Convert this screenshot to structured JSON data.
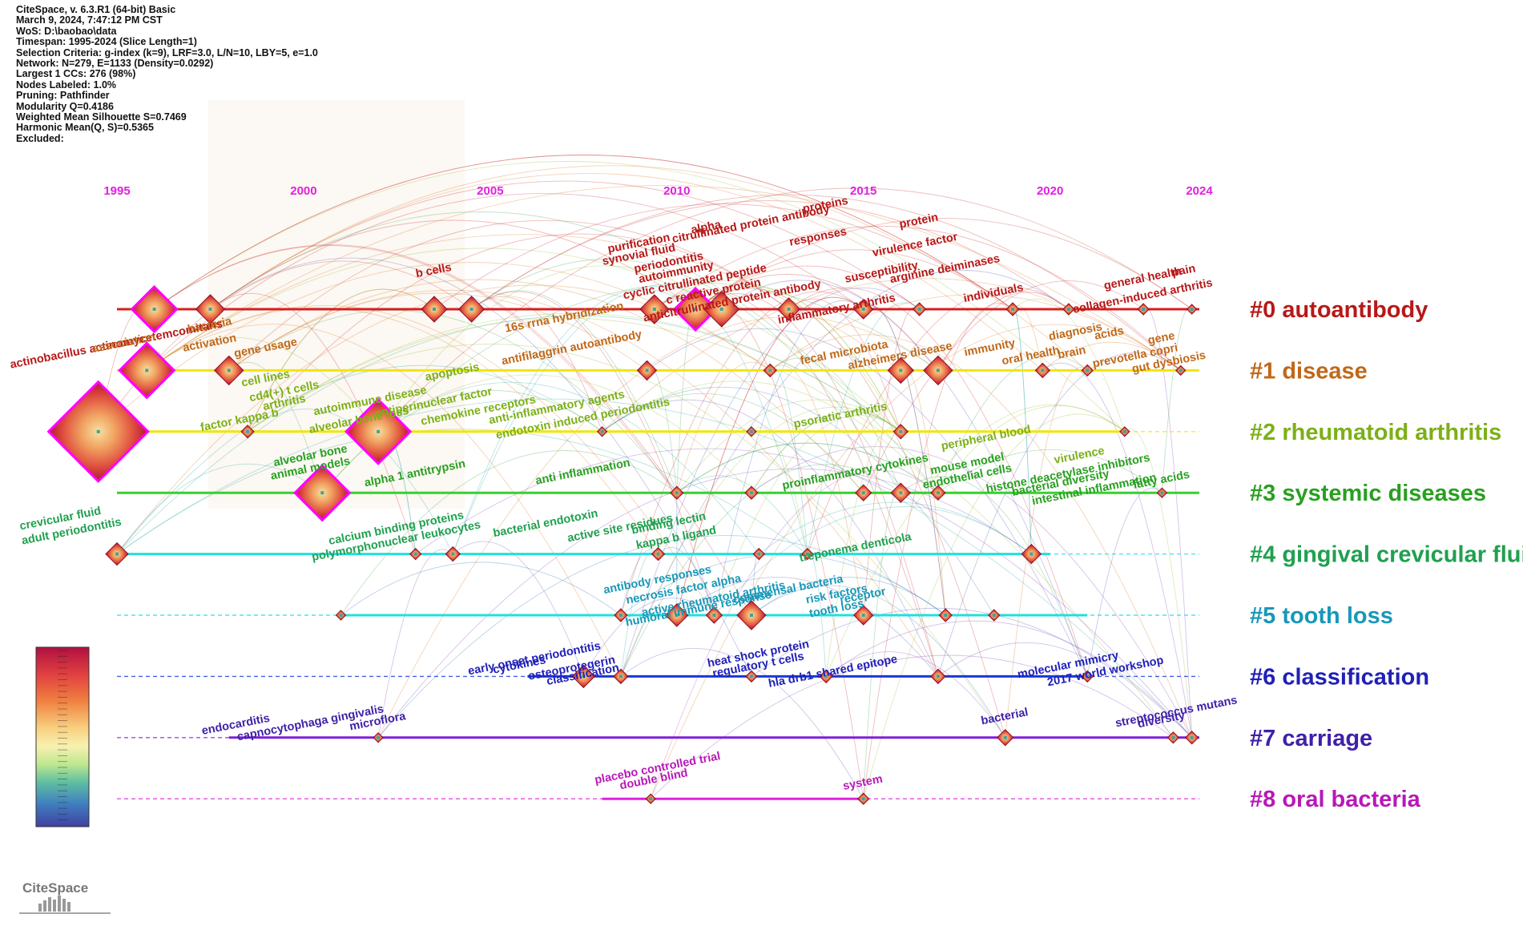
{
  "header_info": [
    "CiteSpace, v. 6.3.R1 (64-bit) Basic",
    "March 9, 2024, 7:47:12 PM CST",
    "WoS: D:\\baobao\\data",
    "Timespan: 1995-2024 (Slice Length=1)",
    "Selection Criteria: g-index (k=9), LRF=3.0, L/N=10, LBY=5, e=1.0",
    "Network: N=279, E=1133 (Density=0.0292)",
    "Largest 1 CCs: 276 (98%)",
    "Nodes Labeled: 1.0%",
    "Pruning: Pathfinder",
    "Modularity Q=0.4186",
    "Weighted Mean Silhouette S=0.7469",
    "Harmonic Mean(Q, S)=0.5365",
    "Excluded:"
  ],
  "year_ticks": [
    "1995",
    "2000",
    "2005",
    "2010",
    "2015",
    "2020",
    "2024"
  ],
  "logo_text": "CiteSpace",
  "colors": {
    "tick": "#e020e0",
    "node_outline": "#ff00ff"
  },
  "clusters": [
    {
      "label": "#0 autoantibody",
      "color": "#b81818",
      "line": "#d42020",
      "start": 1995,
      "end": 2024
    },
    {
      "label": "#1 disease",
      "color": "#c06818",
      "line": "#f2e600",
      "start": 1995,
      "end": 2024
    },
    {
      "label": "#2 rheumatoid arthritis",
      "color": "#7cb018",
      "line": "#f2e600",
      "start": 1995,
      "end": 2022
    },
    {
      "label": "#3 systemic diseases",
      "color": "#28a020",
      "line": "#38d030",
      "start": 1995,
      "end": 2024
    },
    {
      "label": "#4 gingival crevicular fluid",
      "color": "#20a050",
      "line": "#20e0e0",
      "start": 1995,
      "end": 2020
    },
    {
      "label": "#5 tooth loss",
      "color": "#1898b8",
      "line": "#20e0e0",
      "start": 2001,
      "end": 2021
    },
    {
      "label": "#6 classification",
      "color": "#2020b8",
      "line": "#1838d8",
      "start": 2006,
      "end": 2021
    },
    {
      "label": "#7 carriage",
      "color": "#4020a8",
      "line": "#8020d8",
      "start": 1998,
      "end": 2024
    },
    {
      "label": "#8 oral bacteria",
      "color": "#b818b8",
      "line": "#e020e0",
      "start": 2008,
      "end": 2015
    }
  ],
  "keywords": [
    {
      "text": "b cells",
      "cluster": 0,
      "year": 2003.5,
      "dy": -38
    },
    {
      "text": "purification",
      "cluster": 0,
      "year": 2009,
      "dy": -72
    },
    {
      "text": "alpha",
      "cluster": 0,
      "year": 2010.8,
      "dy": -92
    },
    {
      "text": "proteins",
      "cluster": 0,
      "year": 2014,
      "dy": -120
    },
    {
      "text": "citrullinated protein antibody",
      "cluster": 0,
      "year": 2012,
      "dy": -96
    },
    {
      "text": "synovial fluid",
      "cluster": 0,
      "year": 2009,
      "dy": -58
    },
    {
      "text": "periodontitis",
      "cluster": 0,
      "year": 2009.8,
      "dy": -48
    },
    {
      "text": "responses",
      "cluster": 0,
      "year": 2013.8,
      "dy": -80
    },
    {
      "text": "protein",
      "cluster": 0,
      "year": 2016.5,
      "dy": -100
    },
    {
      "text": "autoimmunity",
      "cluster": 0,
      "year": 2010,
      "dy": -36
    },
    {
      "text": "cyclic citrullinated peptide",
      "cluster": 0,
      "year": 2010.5,
      "dy": -24
    },
    {
      "text": "virulence factor",
      "cluster": 0,
      "year": 2016.4,
      "dy": -70
    },
    {
      "text": "c reactive protein",
      "cluster": 0,
      "year": 2011,
      "dy": -12
    },
    {
      "text": "anticitrullinated protein antibody",
      "cluster": 0,
      "year": 2011.5,
      "dy": 0
    },
    {
      "text": "susceptibility",
      "cluster": 0,
      "year": 2015.5,
      "dy": -36
    },
    {
      "text": "arginine deiminases",
      "cluster": 0,
      "year": 2017.2,
      "dy": -40
    },
    {
      "text": "inflammatory arthritis",
      "cluster": 0,
      "year": 2014.3,
      "dy": 10
    },
    {
      "text": "individuals",
      "cluster": 0,
      "year": 2018.5,
      "dy": -10
    },
    {
      "text": "general health",
      "cluster": 0,
      "year": 2022.5,
      "dy": -28
    },
    {
      "text": "pain",
      "cluster": 0,
      "year": 2023.6,
      "dy": -38
    },
    {
      "text": "collagen-induced arthritis",
      "cluster": 0,
      "year": 2022.5,
      "dy": -6
    },
    {
      "text": "actinobacillus actinomycetemcomitans",
      "cluster": 0,
      "year": 1995,
      "dy": 54
    },
    {
      "text": "bacteria",
      "cluster": 1,
      "year": 1997.5,
      "dy": -46
    },
    {
      "text": "association",
      "cluster": 1,
      "year": 1995.2,
      "dy": -24
    },
    {
      "text": "activation",
      "cluster": 1,
      "year": 1997.5,
      "dy": -24
    },
    {
      "text": "gene usage",
      "cluster": 1,
      "year": 1999,
      "dy": -18
    },
    {
      "text": "16s rrna hybridization",
      "cluster": 1,
      "year": 2007,
      "dy": -56
    },
    {
      "text": "antifilaggrin autoantibody",
      "cluster": 1,
      "year": 2007.2,
      "dy": -18
    },
    {
      "text": "fecal microbiota",
      "cluster": 1,
      "year": 2014.5,
      "dy": -12
    },
    {
      "text": "alzheimers disease",
      "cluster": 1,
      "year": 2016,
      "dy": -8
    },
    {
      "text": "immunity",
      "cluster": 1,
      "year": 2018.4,
      "dy": -18
    },
    {
      "text": "oral health",
      "cluster": 1,
      "year": 2019.5,
      "dy": -8
    },
    {
      "text": "diagnosis",
      "cluster": 1,
      "year": 2020.7,
      "dy": -38
    },
    {
      "text": "acids",
      "cluster": 1,
      "year": 2021.6,
      "dy": -36
    },
    {
      "text": "gene",
      "cluster": 1,
      "year": 2023,
      "dy": -30
    },
    {
      "text": "brain",
      "cluster": 1,
      "year": 2020.6,
      "dy": -12
    },
    {
      "text": "prevotella copri",
      "cluster": 1,
      "year": 2022.3,
      "dy": -8
    },
    {
      "text": "gut dysbiosis",
      "cluster": 1,
      "year": 2023.2,
      "dy": 0
    },
    {
      "text": "cell lines",
      "cluster": 2,
      "year": 1999,
      "dy": -56
    },
    {
      "text": "cd4(+) t cells",
      "cluster": 2,
      "year": 1999.5,
      "dy": -40
    },
    {
      "text": "apoptosis",
      "cluster": 2,
      "year": 2004,
      "dy": -64
    },
    {
      "text": "arthritis",
      "cluster": 2,
      "year": 1999.5,
      "dy": -26
    },
    {
      "text": "autoimmune disease",
      "cluster": 2,
      "year": 2001.8,
      "dy": -28
    },
    {
      "text": "antiperinuclear factor",
      "cluster": 2,
      "year": 2003.5,
      "dy": -26
    },
    {
      "text": "factor kappa b",
      "cluster": 2,
      "year": 1998.3,
      "dy": -4
    },
    {
      "text": "alveolar bone loss",
      "cluster": 2,
      "year": 2001.5,
      "dy": -4
    },
    {
      "text": "chemokine receptors",
      "cluster": 2,
      "year": 2004.7,
      "dy": -16
    },
    {
      "text": "anti-inflammatory agents",
      "cluster": 2,
      "year": 2006.8,
      "dy": -20
    },
    {
      "text": "endotoxin induced periodontitis",
      "cluster": 2,
      "year": 2007.5,
      "dy": -6
    },
    {
      "text": "psoriatic arthritis",
      "cluster": 2,
      "year": 2014.4,
      "dy": -10
    },
    {
      "text": "peripheral blood",
      "cluster": 2,
      "year": 2018.3,
      "dy": 18
    },
    {
      "text": "virulence",
      "cluster": 2,
      "year": 2020.8,
      "dy": 40
    },
    {
      "text": "alveolar bone",
      "cluster": 3,
      "year": 2000.2,
      "dy": -36
    },
    {
      "text": "animal models",
      "cluster": 3,
      "year": 2000.2,
      "dy": -20
    },
    {
      "text": "alpha 1 antitrypsin",
      "cluster": 3,
      "year": 2003,
      "dy": -14
    },
    {
      "text": "anti inflammation",
      "cluster": 3,
      "year": 2007.5,
      "dy": -16
    },
    {
      "text": "proinflammatory cytokines",
      "cluster": 3,
      "year": 2014.8,
      "dy": -16
    },
    {
      "text": "mouse model",
      "cluster": 3,
      "year": 2017.8,
      "dy": -26
    },
    {
      "text": "endothelial cells",
      "cluster": 3,
      "year": 2017.8,
      "dy": -10
    },
    {
      "text": "histone deacetylase inhibitors",
      "cluster": 3,
      "year": 2020.5,
      "dy": -14
    },
    {
      "text": "bacterial diversity",
      "cluster": 3,
      "year": 2020.3,
      "dy": -2
    },
    {
      "text": "intestinal inflammation",
      "cluster": 3,
      "year": 2021.2,
      "dy": 6
    },
    {
      "text": "fatty acids",
      "cluster": 3,
      "year": 2023,
      "dy": -6
    },
    {
      "text": "crevicular fluid",
      "cluster": 4,
      "year": 1993.5,
      "dy": -34
    },
    {
      "text": "adult periodontitis",
      "cluster": 4,
      "year": 1993.8,
      "dy": -18
    },
    {
      "text": "calcium binding proteins",
      "cluster": 4,
      "year": 2002.5,
      "dy": -22
    },
    {
      "text": "polymorphonuclear leukocytes",
      "cluster": 4,
      "year": 2002.5,
      "dy": -6
    },
    {
      "text": "bacterial endotoxin",
      "cluster": 4,
      "year": 2006.5,
      "dy": -28
    },
    {
      "text": "active site residues",
      "cluster": 4,
      "year": 2008.5,
      "dy": -22
    },
    {
      "text": "binding lectin",
      "cluster": 4,
      "year": 2009.8,
      "dy": -28
    },
    {
      "text": "kappa b ligand",
      "cluster": 4,
      "year": 2010,
      "dy": -10
    },
    {
      "text": "treponema denticola",
      "cluster": 4,
      "year": 2014.8,
      "dy": 2
    },
    {
      "text": "antibody responses",
      "cluster": 5,
      "year": 2009.5,
      "dy": -34
    },
    {
      "text": "necrosis factor alpha",
      "cluster": 5,
      "year": 2010.2,
      "dy": -22
    },
    {
      "text": "active rheumatoid arthritis",
      "cluster": 5,
      "year": 2011,
      "dy": -10
    },
    {
      "text": "commensal bacteria",
      "cluster": 5,
      "year": 2013,
      "dy": -22
    },
    {
      "text": "risk factors",
      "cluster": 5,
      "year": 2014.3,
      "dy": -16
    },
    {
      "text": "humoral immune response",
      "cluster": 5,
      "year": 2010.6,
      "dy": 2
    },
    {
      "text": "receptor",
      "cluster": 5,
      "year": 2015,
      "dy": -14
    },
    {
      "text": "tooth loss",
      "cluster": 5,
      "year": 2014.3,
      "dy": 2
    },
    {
      "text": "early onset periodontitis",
      "cluster": 6,
      "year": 2006.2,
      "dy": -12
    },
    {
      "text": "cytokines",
      "cluster": 6,
      "year": 2005.8,
      "dy": -4
    },
    {
      "text": "osteoprotegerin",
      "cluster": 6,
      "year": 2007.2,
      "dy": 0
    },
    {
      "text": "classification",
      "cluster": 6,
      "year": 2007.5,
      "dy": 8
    },
    {
      "text": "heat shock protein",
      "cluster": 6,
      "year": 2012.2,
      "dy": -18
    },
    {
      "text": "regulatory t cells",
      "cluster": 6,
      "year": 2012.2,
      "dy": -4
    },
    {
      "text": "hla drb1 shared epitope",
      "cluster": 6,
      "year": 2014.2,
      "dy": 4
    },
    {
      "text": "molecular mimicry",
      "cluster": 6,
      "year": 2020.5,
      "dy": -4
    },
    {
      "text": "2017 world workshop",
      "cluster": 6,
      "year": 2021.5,
      "dy": 4
    },
    {
      "text": "endocarditis",
      "cluster": 7,
      "year": 1998.2,
      "dy": -6
    },
    {
      "text": "capnocytophaga gingivalis",
      "cluster": 7,
      "year": 2000.2,
      "dy": -8
    },
    {
      "text": "microflora",
      "cluster": 7,
      "year": 2002,
      "dy": -10
    },
    {
      "text": "bacterial",
      "cluster": 7,
      "year": 2018.8,
      "dy": -16
    },
    {
      "text": "streptococcus mutans",
      "cluster": 7,
      "year": 2023.4,
      "dy": -22
    },
    {
      "text": "diversity",
      "cluster": 7,
      "year": 2023,
      "dy": -12
    },
    {
      "text": "placebo controlled trial",
      "cluster": 8,
      "year": 2009.5,
      "dy": -28
    },
    {
      "text": "double blind",
      "cluster": 8,
      "year": 2009.4,
      "dy": -14
    },
    {
      "text": "system",
      "cluster": 8,
      "year": 2015,
      "dy": -10
    }
  ],
  "nodes": [
    {
      "cluster": 0,
      "year": 1996,
      "size": 28
    },
    {
      "cluster": 0,
      "year": 1997.5,
      "size": 18
    },
    {
      "cluster": 0,
      "year": 2003.5,
      "size": 16
    },
    {
      "cluster": 0,
      "year": 2004.5,
      "size": 16
    },
    {
      "cluster": 0,
      "year": 2009.4,
      "size": 18
    },
    {
      "cluster": 0,
      "year": 2010.5,
      "size": 26
    },
    {
      "cluster": 0,
      "year": 2011.2,
      "size": 22
    },
    {
      "cluster": 0,
      "year": 2013,
      "size": 14
    },
    {
      "cluster": 0,
      "year": 2015,
      "size": 12
    },
    {
      "cluster": 0,
      "year": 2016.5,
      "size": 8
    },
    {
      "cluster": 0,
      "year": 2019,
      "size": 8
    },
    {
      "cluster": 0,
      "year": 2020.5,
      "size": 7
    },
    {
      "cluster": 0,
      "year": 2022.5,
      "size": 7
    },
    {
      "cluster": 0,
      "year": 2023.8,
      "size": 6
    },
    {
      "cluster": 1,
      "year": 1995.8,
      "size": 34
    },
    {
      "cluster": 1,
      "year": 1998,
      "size": 18
    },
    {
      "cluster": 1,
      "year": 2009.2,
      "size": 12
    },
    {
      "cluster": 1,
      "year": 2012.5,
      "size": 8
    },
    {
      "cluster": 1,
      "year": 2016,
      "size": 16
    },
    {
      "cluster": 1,
      "year": 2017,
      "size": 18
    },
    {
      "cluster": 1,
      "year": 2019.8,
      "size": 9
    },
    {
      "cluster": 1,
      "year": 2021,
      "size": 7
    },
    {
      "cluster": 1,
      "year": 2023.5,
      "size": 6
    },
    {
      "cluster": 2,
      "year": 1994.5,
      "size": 62
    },
    {
      "cluster": 2,
      "year": 1998.5,
      "size": 8
    },
    {
      "cluster": 2,
      "year": 2002,
      "size": 40
    },
    {
      "cluster": 2,
      "year": 2008,
      "size": 6
    },
    {
      "cluster": 2,
      "year": 2012,
      "size": 6
    },
    {
      "cluster": 2,
      "year": 2016,
      "size": 9
    },
    {
      "cluster": 2,
      "year": 2022,
      "size": 6
    },
    {
      "cluster": 3,
      "year": 2000.5,
      "size": 34
    },
    {
      "cluster": 3,
      "year": 2010,
      "size": 8
    },
    {
      "cluster": 3,
      "year": 2012,
      "size": 8
    },
    {
      "cluster": 3,
      "year": 2015,
      "size": 10
    },
    {
      "cluster": 3,
      "year": 2016,
      "size": 12
    },
    {
      "cluster": 3,
      "year": 2017,
      "size": 9
    },
    {
      "cluster": 3,
      "year": 2023,
      "size": 6
    },
    {
      "cluster": 4,
      "year": 1995,
      "size": 14
    },
    {
      "cluster": 4,
      "year": 2003,
      "size": 7
    },
    {
      "cluster": 4,
      "year": 2004,
      "size": 9
    },
    {
      "cluster": 4,
      "year": 2009.5,
      "size": 8
    },
    {
      "cluster": 4,
      "year": 2012.2,
      "size": 7
    },
    {
      "cluster": 4,
      "year": 2013.5,
      "size": 7
    },
    {
      "cluster": 4,
      "year": 2019.5,
      "size": 12
    },
    {
      "cluster": 5,
      "year": 2001,
      "size": 6
    },
    {
      "cluster": 5,
      "year": 2008.5,
      "size": 8
    },
    {
      "cluster": 5,
      "year": 2010,
      "size": 14
    },
    {
      "cluster": 5,
      "year": 2011,
      "size": 10
    },
    {
      "cluster": 5,
      "year": 2012,
      "size": 18
    },
    {
      "cluster": 5,
      "year": 2015,
      "size": 12
    },
    {
      "cluster": 5,
      "year": 2017.2,
      "size": 8
    },
    {
      "cluster": 5,
      "year": 2018.5,
      "size": 7
    },
    {
      "cluster": 6,
      "year": 2007.5,
      "size": 14
    },
    {
      "cluster": 6,
      "year": 2008.5,
      "size": 9
    },
    {
      "cluster": 6,
      "year": 2012,
      "size": 7
    },
    {
      "cluster": 6,
      "year": 2014,
      "size": 8
    },
    {
      "cluster": 6,
      "year": 2017,
      "size": 9
    },
    {
      "cluster": 6,
      "year": 2021,
      "size": 7
    },
    {
      "cluster": 7,
      "year": 2002,
      "size": 6
    },
    {
      "cluster": 7,
      "year": 2018.8,
      "size": 10
    },
    {
      "cluster": 7,
      "year": 2023.3,
      "size": 7
    },
    {
      "cluster": 7,
      "year": 2023.8,
      "size": 8
    },
    {
      "cluster": 8,
      "year": 2009.3,
      "size": 6
    },
    {
      "cluster": 8,
      "year": 2015,
      "size": 7
    }
  ]
}
